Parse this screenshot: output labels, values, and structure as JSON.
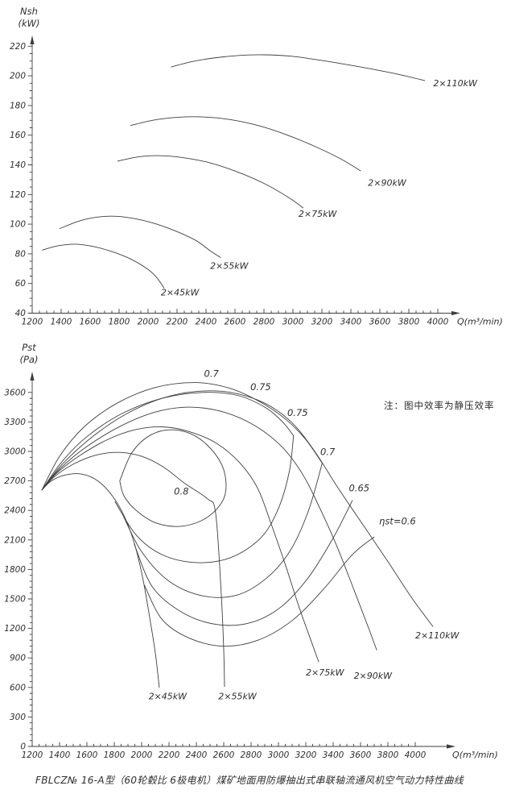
{
  "page": {
    "background": "#ffffff",
    "ink": "#3f3f3f",
    "text_color": "#2e2e2e"
  },
  "caption": "FBLCZ№ 16-A型（60轮毂比 6极电机）煤矿地面用防爆抽出式串联轴流通风机空气动力特性曲线",
  "chart_data": [
    {
      "type": "line",
      "name": "shaft-power-curves",
      "ylabel_lines": [
        "Nsh",
        "(kW)"
      ],
      "xlabel": "Q(m³/min)",
      "xlim": [
        1200,
        4000
      ],
      "ylim": [
        40,
        220
      ],
      "xticks": [
        1200,
        1400,
        1600,
        1800,
        2000,
        2200,
        2400,
        2600,
        2800,
        3000,
        3200,
        3400,
        3600,
        3800,
        4000
      ],
      "yticks": [
        40,
        60,
        80,
        100,
        120,
        140,
        160,
        180,
        200,
        220
      ],
      "x_minor_step": 50,
      "y_minor_step": 5,
      "grid": false,
      "series": [
        {
          "name": "2×45kW",
          "points": [
            [
              1270,
              82.5
            ],
            [
              1380,
              85.5
            ],
            [
              1500,
              86.5
            ],
            [
              1620,
              85
            ],
            [
              1750,
              81.5
            ],
            [
              1880,
              76.5
            ],
            [
              2000,
              69.5
            ],
            [
              2060,
              64
            ],
            [
              2110,
              57
            ]
          ],
          "label": "2×45kW",
          "label_at": [
            2220,
            52
          ]
        },
        {
          "name": "2×55kW",
          "points": [
            [
              1390,
              97
            ],
            [
              1520,
              102
            ],
            [
              1650,
              104.8
            ],
            [
              1780,
              105.3
            ],
            [
              1920,
              103.5
            ],
            [
              2060,
              100
            ],
            [
              2200,
              95
            ],
            [
              2330,
              89
            ],
            [
              2430,
              82
            ],
            [
              2500,
              77.5
            ]
          ],
          "label": "2×55kW",
          "label_at": [
            2560,
            70
          ]
        },
        {
          "name": "2×75kW",
          "points": [
            [
              1790,
              142.5
            ],
            [
              1930,
              145.3
            ],
            [
              2070,
              146.2
            ],
            [
              2230,
              145
            ],
            [
              2420,
              141.5
            ],
            [
              2610,
              135.5
            ],
            [
              2800,
              127.5
            ],
            [
              2970,
              118
            ],
            [
              3070,
              111
            ]
          ],
          "label": "2×75kW",
          "label_at": [
            3170,
            105
          ]
        },
        {
          "name": "2×90kW",
          "points": [
            [
              1880,
              166.5
            ],
            [
              2030,
              170
            ],
            [
              2200,
              172
            ],
            [
              2380,
              172.3
            ],
            [
              2570,
              170.5
            ],
            [
              2760,
              166.5
            ],
            [
              2950,
              160.5
            ],
            [
              3150,
              152.5
            ],
            [
              3330,
              144
            ],
            [
              3467,
              136
            ]
          ],
          "label": "2×90kW",
          "label_at": [
            3650,
            126
          ]
        },
        {
          "name": "2×110kW",
          "points": [
            [
              2160,
              206
            ],
            [
              2300,
              209.5
            ],
            [
              2450,
              212
            ],
            [
              2620,
              213.7
            ],
            [
              2800,
              214.2
            ],
            [
              2980,
              213.3
            ],
            [
              3160,
              211
            ],
            [
              3350,
              208
            ],
            [
              3550,
              204.5
            ],
            [
              3730,
              201
            ],
            [
              3910,
              196.8
            ]
          ],
          "label": "2×110kW",
          "label_at": [
            4120,
            193
          ]
        }
      ]
    },
    {
      "type": "line",
      "name": "static-pressure-curves",
      "ylabel_lines": [
        "Pst",
        "(Pa)"
      ],
      "xlabel": "Q(m³/min)",
      "note": "注：图中效率为静压效率",
      "xlim": [
        1200,
        4000
      ],
      "ylim": [
        0,
        3600
      ],
      "xticks": [
        1200,
        1400,
        1600,
        1800,
        2000,
        2200,
        2400,
        2600,
        2800,
        3000,
        3200,
        3400,
        3600,
        3800,
        4000
      ],
      "yticks": [
        0,
        300,
        600,
        900,
        1200,
        1500,
        1800,
        2100,
        2400,
        2700,
        3000,
        3300,
        3600
      ],
      "x_minor_step": 50,
      "y_minor_step": 60,
      "grid": false,
      "series": [
        {
          "name": "2×45kW",
          "points": [
            [
              1271,
              2608
            ],
            [
              1340,
              2700
            ],
            [
              1440,
              2760
            ],
            [
              1560,
              2770
            ],
            [
              1680,
              2700
            ],
            [
              1790,
              2540
            ],
            [
              1880,
              2320
            ],
            [
              1950,
              2050
            ],
            [
              2010,
              1700
            ],
            [
              2060,
              1300
            ],
            [
              2100,
              950
            ],
            [
              2129,
              600
            ]
          ],
          "label": "2×45kW",
          "label_at": [
            2190,
            480
          ]
        },
        {
          "name": "2×55kW",
          "points": [
            [
              1271,
              2608
            ],
            [
              1360,
              2740
            ],
            [
              1500,
              2870
            ],
            [
              1660,
              2960
            ],
            [
              1830,
              2990
            ],
            [
              2000,
              2950
            ],
            [
              2160,
              2840
            ],
            [
              2320,
              2670
            ],
            [
              2480,
              2520
            ],
            [
              2540,
              2380
            ],
            [
              2580,
              1600
            ],
            [
              2600,
              980
            ],
            [
              2606,
              608
            ]
          ],
          "label": "2×55kW",
          "label_at": [
            2700,
            480
          ]
        },
        {
          "name": "2×75kW",
          "points": [
            [
              1271,
              2608
            ],
            [
              1380,
              2780
            ],
            [
              1550,
              2960
            ],
            [
              1750,
              3120
            ],
            [
              1950,
              3220
            ],
            [
              2150,
              3250
            ],
            [
              2350,
              3200
            ],
            [
              2550,
              3080
            ],
            [
              2720,
              2880
            ],
            [
              2850,
              2620
            ],
            [
              2950,
              2250
            ],
            [
              3050,
              1850
            ],
            [
              3150,
              1420
            ],
            [
              3250,
              1030
            ],
            [
              3294,
              860
            ]
          ],
          "label": "2×75kW",
          "label_at": [
            3340,
            720
          ]
        },
        {
          "name": "2×90kW",
          "points": [
            [
              1271,
              2608
            ],
            [
              1400,
              2820
            ],
            [
              1600,
              3050
            ],
            [
              1850,
              3260
            ],
            [
              2100,
              3400
            ],
            [
              2350,
              3450
            ],
            [
              2600,
              3400
            ],
            [
              2830,
              3260
            ],
            [
              3030,
              3040
            ],
            [
              3180,
              2760
            ],
            [
              3300,
              2430
            ],
            [
              3420,
              2060
            ],
            [
              3550,
              1600
            ],
            [
              3660,
              1200
            ],
            [
              3718,
              980
            ]
          ],
          "label": "2×90kW",
          "label_at": [
            3690,
            690
          ]
        },
        {
          "name": "2×110kW",
          "points": [
            [
              1271,
              2608
            ],
            [
              1420,
              2870
            ],
            [
              1650,
              3160
            ],
            [
              1900,
              3390
            ],
            [
              2150,
              3540
            ],
            [
              2400,
              3610
            ],
            [
              2650,
              3600
            ],
            [
              2900,
              3490
            ],
            [
              3100,
              3290
            ],
            [
              3270,
              2990
            ],
            [
              3430,
              2640
            ],
            [
              3620,
              2250
            ],
            [
              3800,
              1880
            ],
            [
              3970,
              1520
            ],
            [
              4129,
              1220
            ]
          ],
          "label": "2×110kW",
          "label_at": [
            4160,
            1100
          ]
        }
      ],
      "contours": [
        {
          "name": "eta-0.8",
          "closed": true,
          "points": [
            [
              1840,
              2700
            ],
            [
              1930,
              2990
            ],
            [
              2070,
              3170
            ],
            [
              2230,
              3220
            ],
            [
              2400,
              3150
            ],
            [
              2540,
              2970
            ],
            [
              2610,
              2760
            ],
            [
              2600,
              2520
            ],
            [
              2480,
              2330
            ],
            [
              2300,
              2240
            ],
            [
              2110,
              2270
            ],
            [
              1960,
              2400
            ],
            [
              1870,
              2550
            ],
            [
              1840,
              2700
            ]
          ],
          "labels": [
            {
              "text": "0.8",
              "at": [
                2290,
                2560
              ]
            }
          ]
        },
        {
          "name": "eta-0.75-upper",
          "points": [
            [
              1271,
              2608
            ],
            [
              1420,
              2900
            ],
            [
              1600,
              3150
            ],
            [
              1850,
              3380
            ],
            [
              2150,
              3540
            ],
            [
              2450,
              3600
            ],
            [
              2700,
              3570
            ],
            [
              2900,
              3450
            ],
            [
              3030,
              3300
            ],
            [
              3110,
              3160
            ]
          ],
          "labels": [
            {
              "text": "0.75",
              "at": [
                2870,
                3625
              ]
            }
          ]
        },
        {
          "name": "eta-0.75-lower",
          "points": [
            [
              1805,
              2490
            ],
            [
              1960,
              2150
            ],
            [
              2150,
              1950
            ],
            [
              2400,
              1870
            ],
            [
              2650,
              1920
            ],
            [
              2870,
              2120
            ],
            [
              3000,
              2420
            ],
            [
              3080,
              2800
            ],
            [
              3110,
              3160
            ]
          ],
          "labels": [
            {
              "text": "0.75",
              "at": [
                3140,
                3360
              ]
            }
          ]
        },
        {
          "name": "eta-0.7-upper",
          "points": [
            [
              1271,
              2608
            ],
            [
              1400,
              2950
            ],
            [
              1580,
              3250
            ],
            [
              1820,
              3490
            ],
            [
              2100,
              3650
            ],
            [
              2400,
              3700
            ],
            [
              2650,
              3640
            ],
            [
              2870,
              3500
            ],
            [
              3050,
              3330
            ],
            [
              3200,
              3120
            ],
            [
              3320,
              2880
            ]
          ],
          "labels": [
            {
              "text": "0.7",
              "at": [
                2510,
                3760
              ]
            }
          ]
        },
        {
          "name": "eta-0.7-lower",
          "points": [
            [
              1870,
              2330
            ],
            [
              2000,
              1980
            ],
            [
              2200,
              1680
            ],
            [
              2450,
              1530
            ],
            [
              2700,
              1540
            ],
            [
              2920,
              1720
            ],
            [
              3090,
              2000
            ],
            [
              3220,
              2400
            ],
            [
              3320,
              2880
            ]
          ],
          "labels": [
            {
              "text": "0.7",
              "at": [
                3360,
                2965
              ]
            }
          ]
        },
        {
          "name": "eta-0.65-lower",
          "points": [
            [
              1945,
              2060
            ],
            [
              2080,
              1620
            ],
            [
              2300,
              1360
            ],
            [
              2550,
              1240
            ],
            [
              2800,
              1260
            ],
            [
              3020,
              1420
            ],
            [
              3220,
              1720
            ],
            [
              3400,
              2120
            ],
            [
              3540,
              2500
            ]
          ],
          "labels": [
            {
              "text": "0.65",
              "at": [
                3590,
                2595
              ]
            }
          ]
        },
        {
          "name": "eta-0.6-lower",
          "points": [
            [
              2020,
              1640
            ],
            [
              2150,
              1290
            ],
            [
              2350,
              1100
            ],
            [
              2600,
              1020
            ],
            [
              2850,
              1080
            ],
            [
              3100,
              1280
            ],
            [
              3330,
              1600
            ],
            [
              3540,
              1950
            ],
            [
              3700,
              2130
            ]
          ],
          "labels": [
            {
              "text": "ηst=0.6",
              "at": [
                3870,
                2260
              ]
            }
          ]
        }
      ]
    }
  ]
}
